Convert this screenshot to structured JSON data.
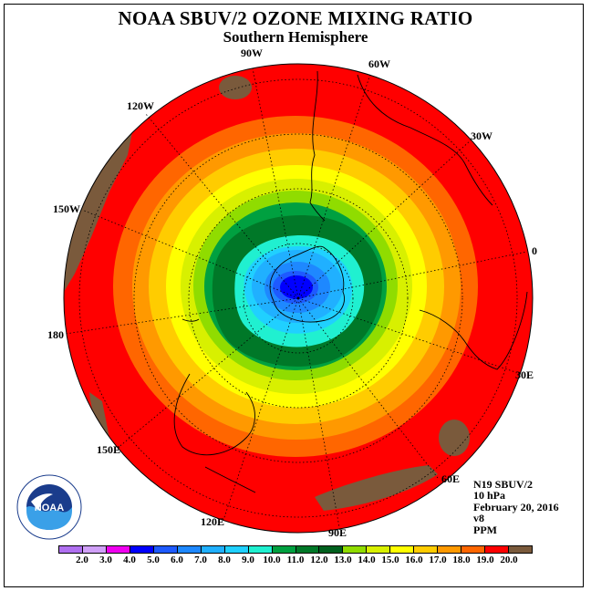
{
  "title": "NOAA SBUV/2 OZONE MIXING RATIO",
  "subtitle": "Southern Hemisphere",
  "longitude_labels": [
    "90W",
    "60W",
    "30W",
    "0",
    "30E",
    "60E",
    "90E",
    "120E",
    "150E",
    "180",
    "150W",
    "120W"
  ],
  "info": {
    "satellite": "N19 SBUV/2",
    "pressure": "10 hPa",
    "date": "February 20, 2016",
    "version": "v8",
    "units": "PPM"
  },
  "colorbar": {
    "ticks": [
      "2.0",
      "3.0",
      "4.0",
      "5.0",
      "6.0",
      "7.0",
      "8.0",
      "9.0",
      "10.0",
      "11.0",
      "12.0",
      "13.0",
      "14.0",
      "15.0",
      "16.0",
      "17.0",
      "18.0",
      "19.0",
      "20.0"
    ],
    "colors": [
      "#b070f0",
      "#d0a0f8",
      "#f000f0",
      "#0000ff",
      "#1e5aff",
      "#1e88ff",
      "#20b0ff",
      "#20d0ff",
      "#20f0d0",
      "#00a040",
      "#007828",
      "#00601e",
      "#90dc00",
      "#d8f000",
      "#ffff00",
      "#ffcc00",
      "#ff9900",
      "#ff6600",
      "#ff0000",
      "#7a5a3c"
    ]
  },
  "map": {
    "level_colors": {
      "brown": "#7a5a3c",
      "red": "#ff0000",
      "orange_red": "#ff6600",
      "orange": "#ff9900",
      "gold": "#ffcc00",
      "yellow": "#ffff00",
      "yellow_green": "#d8f000",
      "lime": "#90dc00",
      "light_green": "#00a040",
      "dark_green": "#007828",
      "cyan": "#20f0d0",
      "light_blue": "#20d0ff",
      "sky_blue": "#20b0ff",
      "azure": "#1e88ff",
      "royal_blue": "#1e5aff",
      "blue": "#0000ff"
    }
  },
  "logo": {
    "text": "NOAA"
  }
}
